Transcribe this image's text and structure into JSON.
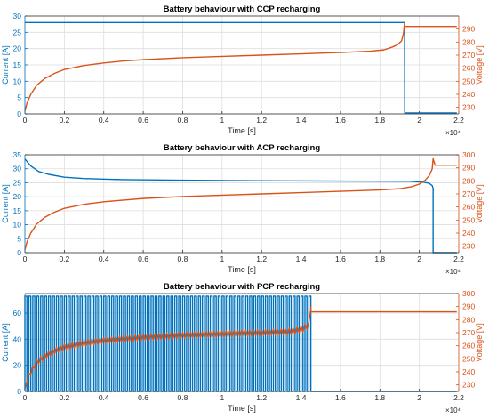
{
  "colors": {
    "current": "#0072BD",
    "voltage": "#D95319",
    "grid": "#dedede",
    "axis": "#262626"
  },
  "chart_data": [
    {
      "type": "line",
      "title": "Battery behaviour with CCP recharging",
      "xlabel": "Time [s]",
      "ylabel_left": "Current [A]",
      "ylabel_right": "Voltage [V]",
      "xlim": [
        0,
        22000
      ],
      "ylim_left": [
        0,
        30
      ],
      "ylim_right": [
        225,
        300
      ],
      "x_ticks": [
        "0",
        "0.2",
        "0.4",
        "0.6",
        "0.8",
        "1",
        "1.2",
        "1.4",
        "1.6",
        "1.8",
        "2",
        "2.2"
      ],
      "x_exponent": "×10⁴",
      "y_ticks_left": [
        "0",
        "5",
        "10",
        "15",
        "20",
        "25",
        "30"
      ],
      "y_ticks_right": [
        "230",
        "240",
        "250",
        "260",
        "270",
        "280",
        "290"
      ],
      "grid": true,
      "series": [
        {
          "axis": "left",
          "x": [
            0,
            19250,
            19250,
            19260,
            21900
          ],
          "y": [
            28,
            28,
            28,
            0.3,
            0.3
          ]
        },
        {
          "axis": "right",
          "x": [
            0,
            100,
            300,
            600,
            1000,
            1500,
            2000,
            3000,
            4000,
            5000,
            6000,
            8000,
            10000,
            12000,
            14000,
            16000,
            17500,
            18200,
            18600,
            18900,
            19100,
            19200,
            19250,
            19250,
            21900
          ],
          "y": [
            227,
            233,
            240,
            247,
            252,
            256,
            259,
            262,
            264,
            265.5,
            266.5,
            268,
            269,
            270,
            271,
            272,
            273,
            274,
            276,
            278,
            281,
            287,
            295,
            292,
            292
          ]
        }
      ]
    },
    {
      "type": "line",
      "title": "Battery behaviour with ACP recharging",
      "xlabel": "Time [s]",
      "ylabel_left": "Current [A]",
      "ylabel_right": "Voltage [V]",
      "xlim": [
        0,
        22000
      ],
      "ylim_left": [
        0,
        35
      ],
      "ylim_right": [
        225,
        300
      ],
      "x_ticks": [
        "0",
        "0.2",
        "0.4",
        "0.6",
        "0.8",
        "1",
        "1.2",
        "1.4",
        "1.6",
        "1.8",
        "2",
        "2.2"
      ],
      "x_exponent": "×10⁴",
      "y_ticks_left": [
        "0",
        "5",
        "10",
        "15",
        "20",
        "25",
        "30",
        "35"
      ],
      "y_ticks_right": [
        "230",
        "240",
        "250",
        "260",
        "270",
        "280",
        "290",
        "300"
      ],
      "grid": true,
      "series": [
        {
          "axis": "left",
          "x": [
            0,
            300,
            700,
            1200,
            2000,
            3000,
            5000,
            8000,
            12000,
            16000,
            19500,
            20200,
            20500,
            20650,
            20700,
            20700,
            21900
          ],
          "y": [
            33.5,
            31,
            29,
            28,
            27,
            26.5,
            26.1,
            25.9,
            25.7,
            25.6,
            25.5,
            25.2,
            24.8,
            24,
            23,
            0,
            0
          ]
        },
        {
          "axis": "right",
          "x": [
            0,
            100,
            300,
            600,
            1000,
            1500,
            2000,
            3000,
            4000,
            6000,
            8000,
            10000,
            12000,
            14000,
            16000,
            18000,
            19000,
            19600,
            20000,
            20300,
            20500,
            20650,
            20700,
            20800,
            21900
          ],
          "y": [
            227,
            233,
            240,
            247,
            252,
            256,
            259,
            262,
            264,
            266.5,
            268,
            269,
            270,
            271,
            272,
            273,
            274,
            275.5,
            277.5,
            280.5,
            284,
            289,
            297,
            292,
            292
          ]
        }
      ]
    },
    {
      "type": "line",
      "title": "Battery behaviour with PCP recharging",
      "xlabel": "Time [s]",
      "ylabel_left": "Current [A]",
      "ylabel_right": "Voltage [V]",
      "xlim": [
        0,
        22000
      ],
      "ylim_left": [
        0,
        75
      ],
      "ylim_right": [
        225,
        300
      ],
      "x_ticks": [
        "0",
        "0.2",
        "0.4",
        "0.6",
        "0.8",
        "1",
        "1.2",
        "1.4",
        "1.6",
        "1.8",
        "2",
        "2.2"
      ],
      "x_exponent": "×10⁴",
      "y_ticks_left": [
        "0",
        "20",
        "40",
        "60"
      ],
      "y_ticks_right": [
        "230",
        "240",
        "250",
        "260",
        "270",
        "280",
        "290",
        "300"
      ],
      "grid": true,
      "series": [
        {
          "axis": "left",
          "pulsed": true,
          "pulse_high": 73,
          "pulse_low": 0,
          "pulse_period": 200,
          "pulse_end": 14500,
          "x": [
            14500,
            21900
          ],
          "y": [
            0,
            0
          ]
        },
        {
          "axis": "right",
          "ripple": 2.5,
          "ripple_period": 200,
          "ripple_end": 14500,
          "x": [
            0,
            100,
            300,
            600,
            1000,
            1500,
            2000,
            3000,
            4000,
            6000,
            8000,
            10000,
            12000,
            13500,
            14100,
            14400,
            14500,
            14500,
            21900
          ],
          "y": [
            227,
            233,
            240,
            247,
            252,
            256,
            259,
            262,
            264,
            266.5,
            268,
            269,
            270,
            271,
            273,
            276,
            290,
            286,
            286
          ]
        }
      ]
    }
  ]
}
